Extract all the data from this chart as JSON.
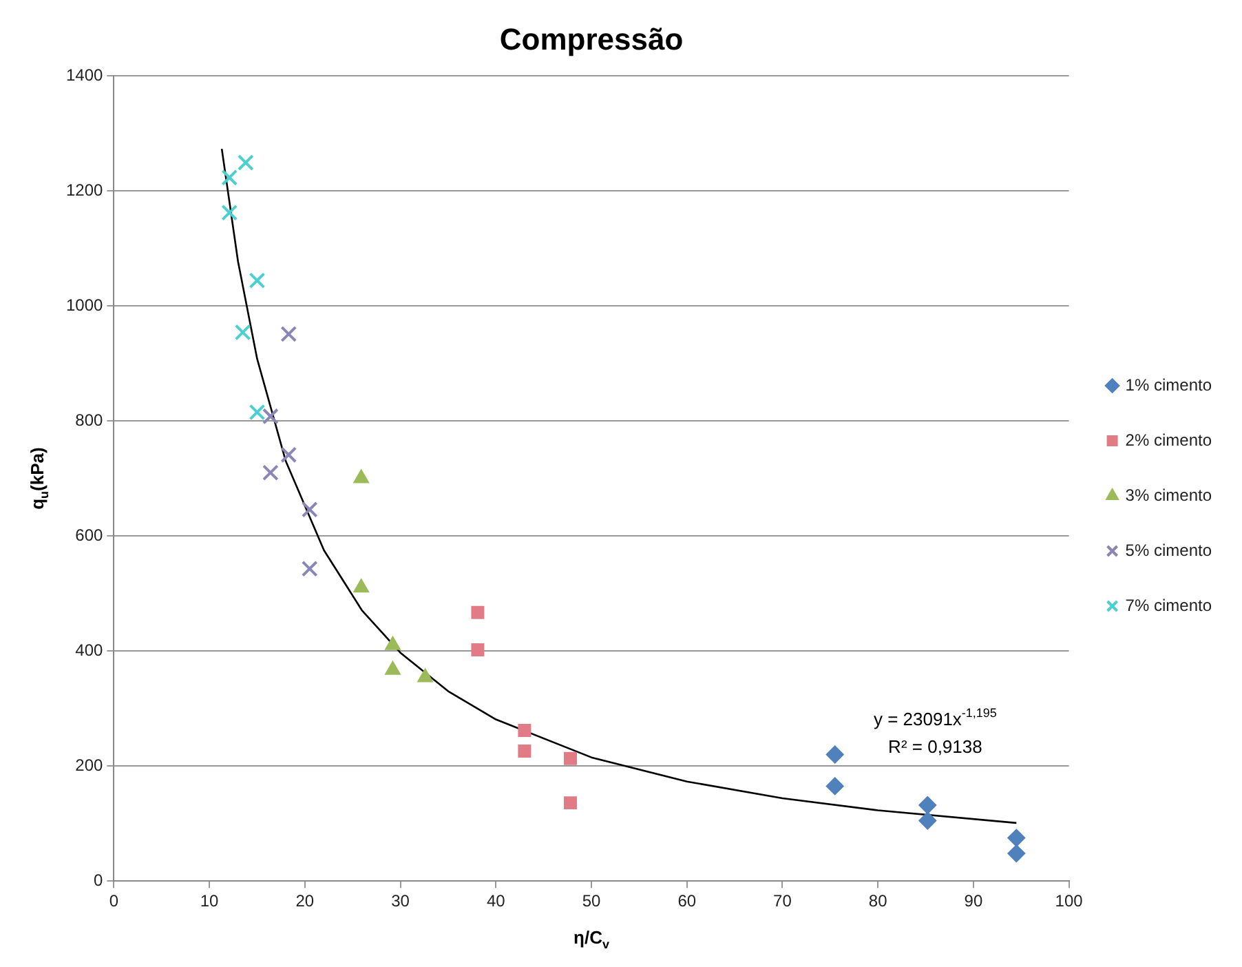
{
  "chart_data": {
    "type": "scatter",
    "title": "Compressão",
    "xlabel": "η/C$_{v}$",
    "ylabel": "q$_{u}$(kPa)",
    "xlim": [
      0,
      100
    ],
    "xticks": [
      0,
      10,
      20,
      30,
      40,
      50,
      60,
      70,
      80,
      90,
      100
    ],
    "ylim": [
      0,
      1400
    ],
    "yticks": [
      0,
      200,
      400,
      600,
      800,
      1000,
      1200,
      1400
    ],
    "grid": "y",
    "legend": "right",
    "annotations": [
      "y = 23091x$^{-1,195}$",
      "R² = 0,9138"
    ],
    "series": [
      {
        "name": "1% cimento",
        "color": "#4f81bd",
        "marker": "diamond",
        "x": [
          75.5,
          75.5,
          85.2,
          85.2,
          94.5,
          94.5
        ],
        "values": [
          220,
          165,
          132,
          105,
          75,
          48
        ]
      },
      {
        "name": "2% cimento",
        "color": "#e17c86",
        "marker": "square",
        "x": [
          38.1,
          38.1,
          43.0,
          43.0,
          47.8,
          47.8
        ],
        "values": [
          467,
          402,
          262,
          226,
          213,
          136
        ]
      },
      {
        "name": "3% cimento",
        "color": "#9bbb59",
        "marker": "triangle",
        "x": [
          25.9,
          25.9,
          29.2,
          29.2,
          32.6
        ],
        "values": [
          700,
          510,
          410,
          367,
          354
        ]
      },
      {
        "name": "5% cimento",
        "color": "#8a86b8",
        "marker": "cross",
        "x": [
          18.3,
          16.4,
          18.3,
          16.4,
          20.5,
          20.5
        ],
        "values": [
          951,
          808,
          741,
          710,
          646,
          543
        ]
      },
      {
        "name": "7% cimento",
        "color": "#4bcfd0",
        "marker": "cross",
        "x": [
          13.8,
          12.1,
          12.1,
          15.0,
          13.5,
          15.0
        ],
        "values": [
          1249,
          1223,
          1162,
          1044,
          954,
          815
        ]
      },
      {
        "type": "line",
        "color": "#000000",
        "marker": "none",
        "x": [
          11.3,
          13,
          15,
          18,
          22,
          26,
          30,
          35,
          40,
          50,
          60,
          70,
          80,
          94.5
        ],
        "values": [
          1273,
          1077,
          908,
          730,
          575,
          470,
          397,
          330,
          281,
          215,
          173,
          144,
          123,
          101
        ]
      }
    ]
  }
}
